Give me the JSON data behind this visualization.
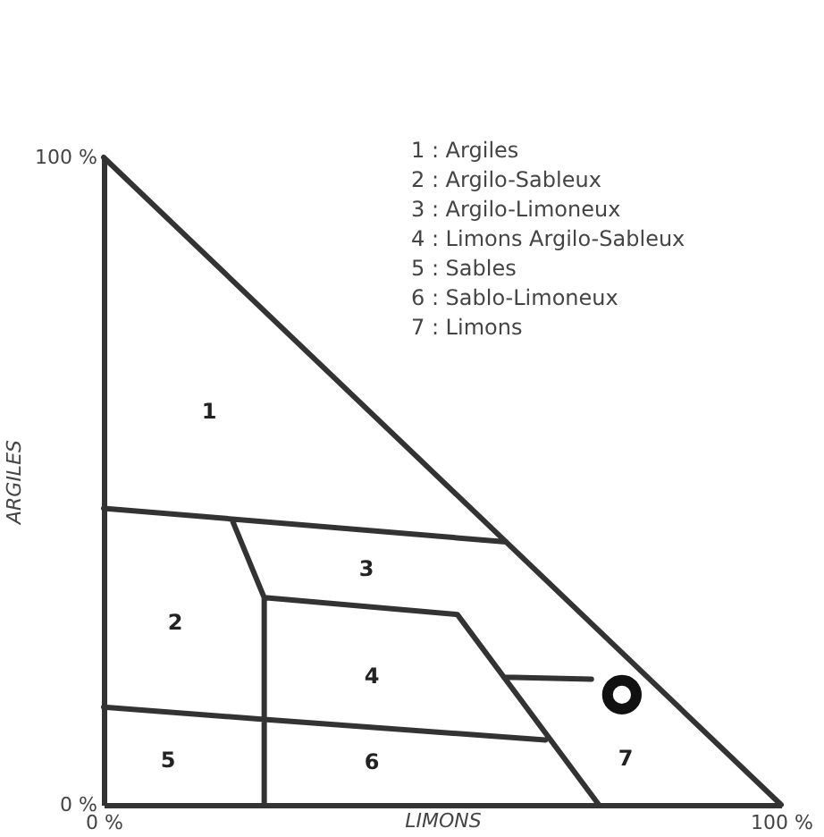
{
  "chart_data": {
    "type": "line",
    "xlabel": "LIMONS",
    "ylabel": "ARGILES",
    "xlim": [
      0,
      100
    ],
    "ylim": [
      0,
      100
    ],
    "xticks": [
      {
        "value": 0,
        "label": "0 %"
      },
      {
        "value": 100,
        "label": "100 %"
      }
    ],
    "yticks": [
      {
        "value": 0,
        "label": "0 %"
      },
      {
        "value": 100,
        "label": "100 %"
      }
    ],
    "grid": false,
    "line_style": "solid",
    "series": [
      {
        "type": "line",
        "color": "#333333",
        "marker": "none",
        "x": [
          0,
          100,
          null,
          0,
          59.4,
          null,
          19,
          23.7,
          23.7,
          null,
          23.7,
          52.2,
          73.1,
          null,
          0,
          23.7,
          65.2,
          null,
          59.1,
          72
        ],
        "values": [
          100,
          0,
          null,
          45.8,
          40.6,
          null,
          43.9,
          32,
          0,
          null,
          32,
          29.4,
          0,
          null,
          15.1,
          13.2,
          10,
          null,
          19.7,
          19.4
        ]
      },
      {
        "type": "scatter",
        "color": "#111111",
        "marker": "circle",
        "x": [
          76.5
        ],
        "values": [
          17
        ]
      }
    ],
    "annotations": [
      "1 : Argiles",
      "2 : Argilo-Sableux",
      "3 : Argilo-Limoneux",
      "4 : Limons Argilo-Sableux",
      "5 : Sables",
      "6 : Sablo-Limoneux",
      "7 : Limons",
      "1",
      "2",
      "3",
      "4",
      "5",
      "6",
      "7"
    ]
  }
}
